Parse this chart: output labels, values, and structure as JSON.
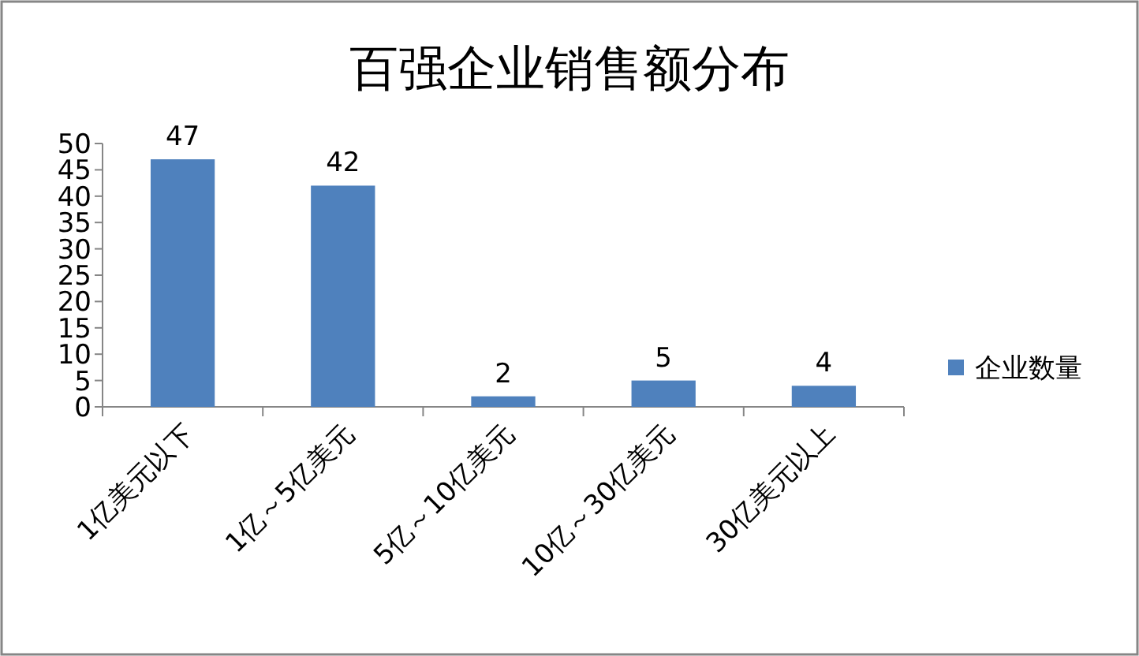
{
  "chart_data": {
    "type": "bar",
    "title": "百强企业销售额分布",
    "categories": [
      "1亿美元以下",
      "1亿～5亿美元",
      "5亿～10亿美元",
      "10亿～30亿美元",
      "30亿美元以上"
    ],
    "series": [
      {
        "name": "企业数量",
        "color": "#4f81bd",
        "values": [
          47,
          42,
          2,
          5,
          4
        ]
      }
    ],
    "ylim": [
      0,
      50
    ],
    "yticks": [
      0,
      5,
      10,
      15,
      20,
      25,
      30,
      35,
      40,
      45,
      50
    ],
    "data_labels": true,
    "legend": "right",
    "grid": false
  }
}
